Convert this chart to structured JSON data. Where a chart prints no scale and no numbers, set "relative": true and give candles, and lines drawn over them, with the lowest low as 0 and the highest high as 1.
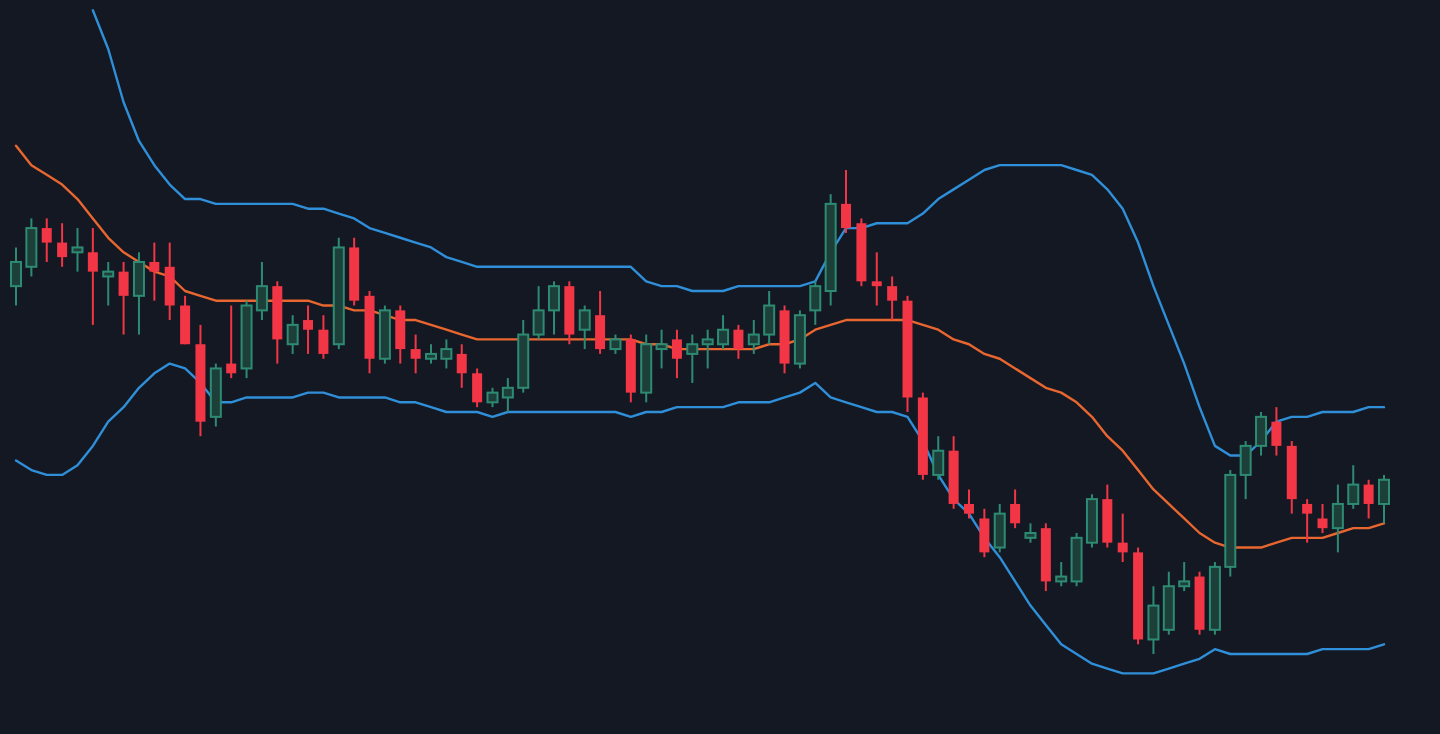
{
  "chart_data": {
    "type": "candlestick",
    "relative": true,
    "categories": [
      null,
      null,
      null,
      null,
      null,
      null,
      null,
      null,
      null,
      null,
      null,
      null,
      null,
      null,
      null,
      null,
      null,
      null,
      null,
      null,
      null,
      null,
      null,
      null,
      null,
      null,
      null,
      null,
      null,
      null,
      null,
      null,
      null,
      null,
      null,
      null,
      null,
      null,
      null,
      null,
      null,
      null,
      null,
      null,
      null,
      null,
      null,
      null,
      null,
      null,
      null,
      null,
      null,
      null,
      null,
      null,
      null,
      null,
      null,
      null,
      null,
      null,
      null,
      null,
      null,
      null,
      null,
      null,
      null,
      null,
      null,
      null,
      null,
      null,
      null,
      null,
      null,
      null,
      null,
      null,
      null,
      null,
      null,
      null,
      null,
      null,
      null,
      null,
      null,
      null
    ],
    "ohlc": [
      [
        0.76,
        0.84,
        0.72,
        0.81
      ],
      [
        0.8,
        0.9,
        0.78,
        0.88
      ],
      [
        0.88,
        0.9,
        0.81,
        0.85
      ],
      [
        0.85,
        0.89,
        0.8,
        0.82
      ],
      [
        0.83,
        0.88,
        0.79,
        0.84
      ],
      [
        0.83,
        0.88,
        0.68,
        0.79
      ],
      [
        0.78,
        0.81,
        0.72,
        0.79
      ],
      [
        0.79,
        0.81,
        0.66,
        0.74
      ],
      [
        0.74,
        0.83,
        0.66,
        0.81
      ],
      [
        0.81,
        0.85,
        0.73,
        0.79
      ],
      [
        0.8,
        0.85,
        0.69,
        0.72
      ],
      [
        0.72,
        0.74,
        0.64,
        0.64
      ],
      [
        0.64,
        0.68,
        0.45,
        0.48
      ],
      [
        0.49,
        0.6,
        0.47,
        0.59
      ],
      [
        0.6,
        0.72,
        0.57,
        0.58
      ],
      [
        0.59,
        0.73,
        0.57,
        0.72
      ],
      [
        0.71,
        0.81,
        0.69,
        0.76
      ],
      [
        0.76,
        0.77,
        0.6,
        0.65
      ],
      [
        0.64,
        0.7,
        0.62,
        0.68
      ],
      [
        0.69,
        0.72,
        0.62,
        0.67
      ],
      [
        0.67,
        0.7,
        0.61,
        0.62
      ],
      [
        0.64,
        0.86,
        0.63,
        0.84
      ],
      [
        0.84,
        0.86,
        0.72,
        0.73
      ],
      [
        0.74,
        0.75,
        0.58,
        0.61
      ],
      [
        0.61,
        0.72,
        0.6,
        0.71
      ],
      [
        0.71,
        0.72,
        0.6,
        0.63
      ],
      [
        0.63,
        0.66,
        0.58,
        0.61
      ],
      [
        0.61,
        0.64,
        0.6,
        0.62
      ],
      [
        0.61,
        0.65,
        0.59,
        0.63
      ],
      [
        0.62,
        0.64,
        0.55,
        0.58
      ],
      [
        0.58,
        0.59,
        0.51,
        0.52
      ],
      [
        0.52,
        0.55,
        0.51,
        0.54
      ],
      [
        0.53,
        0.57,
        0.5,
        0.55
      ],
      [
        0.55,
        0.69,
        0.54,
        0.66
      ],
      [
        0.66,
        0.76,
        0.65,
        0.71
      ],
      [
        0.71,
        0.77,
        0.66,
        0.76
      ],
      [
        0.76,
        0.77,
        0.64,
        0.66
      ],
      [
        0.67,
        0.72,
        0.63,
        0.71
      ],
      [
        0.7,
        0.75,
        0.62,
        0.63
      ],
      [
        0.63,
        0.66,
        0.62,
        0.65
      ],
      [
        0.65,
        0.66,
        0.52,
        0.54
      ],
      [
        0.54,
        0.66,
        0.52,
        0.64
      ],
      [
        0.63,
        0.67,
        0.59,
        0.64
      ],
      [
        0.65,
        0.67,
        0.57,
        0.61
      ],
      [
        0.62,
        0.66,
        0.56,
        0.64
      ],
      [
        0.64,
        0.67,
        0.59,
        0.65
      ],
      [
        0.64,
        0.7,
        0.63,
        0.67
      ],
      [
        0.67,
        0.68,
        0.61,
        0.63
      ],
      [
        0.64,
        0.69,
        0.62,
        0.66
      ],
      [
        0.66,
        0.75,
        0.64,
        0.72
      ],
      [
        0.71,
        0.72,
        0.58,
        0.6
      ],
      [
        0.6,
        0.71,
        0.59,
        0.7
      ],
      [
        0.71,
        0.77,
        0.68,
        0.76
      ],
      [
        0.75,
        0.95,
        0.72,
        0.93
      ],
      [
        0.93,
        1.0,
        0.87,
        0.88
      ],
      [
        0.89,
        0.9,
        0.76,
        0.77
      ],
      [
        0.77,
        0.83,
        0.72,
        0.76
      ],
      [
        0.76,
        0.78,
        0.69,
        0.73
      ],
      [
        0.73,
        0.74,
        0.5,
        0.53
      ],
      [
        0.53,
        0.54,
        0.36,
        0.37
      ],
      [
        0.37,
        0.45,
        0.36,
        0.42
      ],
      [
        0.42,
        0.45,
        0.3,
        0.31
      ],
      [
        0.31,
        0.34,
        0.28,
        0.29
      ],
      [
        0.28,
        0.3,
        0.2,
        0.21
      ],
      [
        0.22,
        0.31,
        0.21,
        0.29
      ],
      [
        0.31,
        0.34,
        0.26,
        0.27
      ],
      [
        0.24,
        0.27,
        0.23,
        0.25
      ],
      [
        0.26,
        0.27,
        0.13,
        0.15
      ],
      [
        0.15,
        0.19,
        0.14,
        0.16
      ],
      [
        0.15,
        0.25,
        0.14,
        0.24
      ],
      [
        0.23,
        0.33,
        0.22,
        0.32
      ],
      [
        0.32,
        0.35,
        0.22,
        0.23
      ],
      [
        0.23,
        0.29,
        0.19,
        0.21
      ],
      [
        0.21,
        0.22,
        0.02,
        0.03
      ],
      [
        0.03,
        0.14,
        0.0,
        0.1
      ],
      [
        0.05,
        0.17,
        0.04,
        0.14
      ],
      [
        0.14,
        0.19,
        0.13,
        0.15
      ],
      [
        0.16,
        0.17,
        0.04,
        0.05
      ],
      [
        0.05,
        0.19,
        0.04,
        0.18
      ],
      [
        0.18,
        0.38,
        0.16,
        0.37
      ],
      [
        0.37,
        0.44,
        0.32,
        0.43
      ],
      [
        0.43,
        0.5,
        0.41,
        0.49
      ],
      [
        0.48,
        0.51,
        0.41,
        0.43
      ],
      [
        0.43,
        0.44,
        0.29,
        0.32
      ],
      [
        0.31,
        0.32,
        0.23,
        0.29
      ],
      [
        0.28,
        0.31,
        0.25,
        0.26
      ],
      [
        0.26,
        0.35,
        0.21,
        0.31
      ],
      [
        0.31,
        0.39,
        0.3,
        0.35
      ],
      [
        0.35,
        0.36,
        0.28,
        0.31
      ],
      [
        0.31,
        0.37,
        0.27,
        0.36
      ]
    ],
    "colors": [
      "#2e8b73",
      "#2e8b73",
      "#f23645",
      "#f23645",
      "#2e8b73",
      "#f23645",
      "#2e8b73",
      "#f23645",
      "#2e8b73",
      "#f23645",
      "#f23645",
      "#f23645",
      "#f23645",
      "#2e8b73",
      "#f23645",
      "#2e8b73",
      "#2e8b73",
      "#f23645",
      "#2e8b73",
      "#f23645",
      "#f23645",
      "#2e8b73",
      "#f23645",
      "#f23645",
      "#2e8b73",
      "#f23645",
      "#f23645",
      "#2e8b73",
      "#2e8b73",
      "#f23645",
      "#f23645",
      "#2e8b73",
      "#2e8b73",
      "#2e8b73",
      "#2e8b73",
      "#2e8b73",
      "#f23645",
      "#2e8b73",
      "#f23645",
      "#2e8b73",
      "#f23645",
      "#2e8b73",
      "#2e8b73",
      "#f23645",
      "#2e8b73",
      "#2e8b73",
      "#2e8b73",
      "#f23645",
      "#2e8b73",
      "#2e8b73",
      "#f23645",
      "#2e8b73",
      "#2e8b73",
      "#2e8b73",
      "#f23645",
      "#f23645",
      "#f23645",
      "#f23645",
      "#f23645",
      "#f23645",
      "#2e8b73",
      "#f23645",
      "#f23645",
      "#f23645",
      "#2e8b73",
      "#f23645",
      "#2e8b73",
      "#f23645",
      "#2e8b73",
      "#2e8b73",
      "#2e8b73",
      "#f23645",
      "#f23645",
      "#f23645",
      "#2e8b73",
      "#2e8b73",
      "#2e8b73",
      "#f23645",
      "#2e8b73",
      "#2e8b73",
      "#2e8b73",
      "#2e8b73",
      "#f23645",
      "#f23645",
      "#f23645",
      "#f23645",
      "#2e8b73",
      "#2e8b73",
      "#f23645",
      "#2e8b73"
    ],
    "series": [
      {
        "type": "line",
        "color": "#2f8fd8",
        "values": [
          null,
          null,
          null,
          null,
          null,
          1.33,
          1.25,
          1.14,
          1.06,
          1.01,
          0.97,
          0.94,
          0.94,
          0.93,
          0.93,
          0.93,
          0.93,
          0.93,
          0.93,
          0.92,
          0.92,
          0.91,
          0.9,
          0.88,
          0.87,
          0.86,
          0.85,
          0.84,
          0.82,
          0.81,
          0.8,
          0.8,
          0.8,
          0.8,
          0.8,
          0.8,
          0.8,
          0.8,
          0.8,
          0.8,
          0.8,
          0.77,
          0.76,
          0.76,
          0.75,
          0.75,
          0.75,
          0.76,
          0.76,
          0.76,
          0.76,
          0.76,
          0.77,
          0.83,
          0.88,
          0.88,
          0.89,
          0.89,
          0.89,
          0.91,
          0.94,
          0.96,
          0.98,
          1.0,
          1.01,
          1.01,
          1.01,
          1.01,
          1.01,
          1.0,
          0.99,
          0.96,
          0.92,
          0.85,
          0.76,
          0.68,
          0.6,
          0.51,
          0.43,
          0.41,
          0.41,
          0.44,
          0.48,
          0.49,
          0.49,
          0.5,
          0.5,
          0.5,
          0.51,
          0.51
        ]
      },
      {
        "type": "line",
        "color": "#e8662f",
        "values": [
          1.05,
          1.01,
          0.99,
          0.97,
          0.94,
          0.9,
          0.86,
          0.83,
          0.81,
          0.79,
          0.78,
          0.75,
          0.74,
          0.73,
          0.73,
          0.73,
          0.73,
          0.73,
          0.73,
          0.73,
          0.72,
          0.72,
          0.71,
          0.71,
          0.7,
          0.69,
          0.69,
          0.68,
          0.67,
          0.66,
          0.65,
          0.65,
          0.65,
          0.65,
          0.65,
          0.65,
          0.65,
          0.65,
          0.65,
          0.65,
          0.65,
          0.64,
          0.64,
          0.63,
          0.63,
          0.63,
          0.63,
          0.63,
          0.63,
          0.64,
          0.64,
          0.65,
          0.67,
          0.68,
          0.69,
          0.69,
          0.69,
          0.69,
          0.69,
          0.68,
          0.67,
          0.65,
          0.64,
          0.62,
          0.61,
          0.59,
          0.57,
          0.55,
          0.54,
          0.52,
          0.49,
          0.45,
          0.42,
          0.38,
          0.34,
          0.31,
          0.28,
          0.25,
          0.23,
          0.22,
          0.22,
          0.22,
          0.23,
          0.24,
          0.24,
          0.24,
          0.25,
          0.26,
          0.26,
          0.27
        ]
      },
      {
        "type": "line",
        "color": "#2f8fd8",
        "values": [
          0.4,
          0.38,
          0.37,
          0.37,
          0.39,
          0.43,
          0.48,
          0.51,
          0.55,
          0.58,
          0.6,
          0.59,
          0.56,
          0.52,
          0.52,
          0.53,
          0.53,
          0.53,
          0.53,
          0.54,
          0.54,
          0.53,
          0.53,
          0.53,
          0.53,
          0.52,
          0.52,
          0.51,
          0.5,
          0.5,
          0.5,
          0.49,
          0.5,
          0.5,
          0.5,
          0.5,
          0.5,
          0.5,
          0.5,
          0.5,
          0.49,
          0.5,
          0.5,
          0.51,
          0.51,
          0.51,
          0.51,
          0.52,
          0.52,
          0.52,
          0.53,
          0.54,
          0.56,
          0.53,
          0.52,
          0.51,
          0.5,
          0.5,
          0.49,
          0.44,
          0.37,
          0.32,
          0.29,
          0.24,
          0.2,
          0.15,
          0.1,
          0.06,
          0.02,
          0.0,
          -0.02,
          -0.03,
          -0.04,
          -0.04,
          -0.04,
          -0.03,
          -0.02,
          -0.01,
          0.01,
          0.0,
          0.0,
          0.0,
          0.0,
          0.0,
          0.0,
          0.01,
          0.01,
          0.01,
          0.01,
          0.02
        ]
      }
    ]
  }
}
